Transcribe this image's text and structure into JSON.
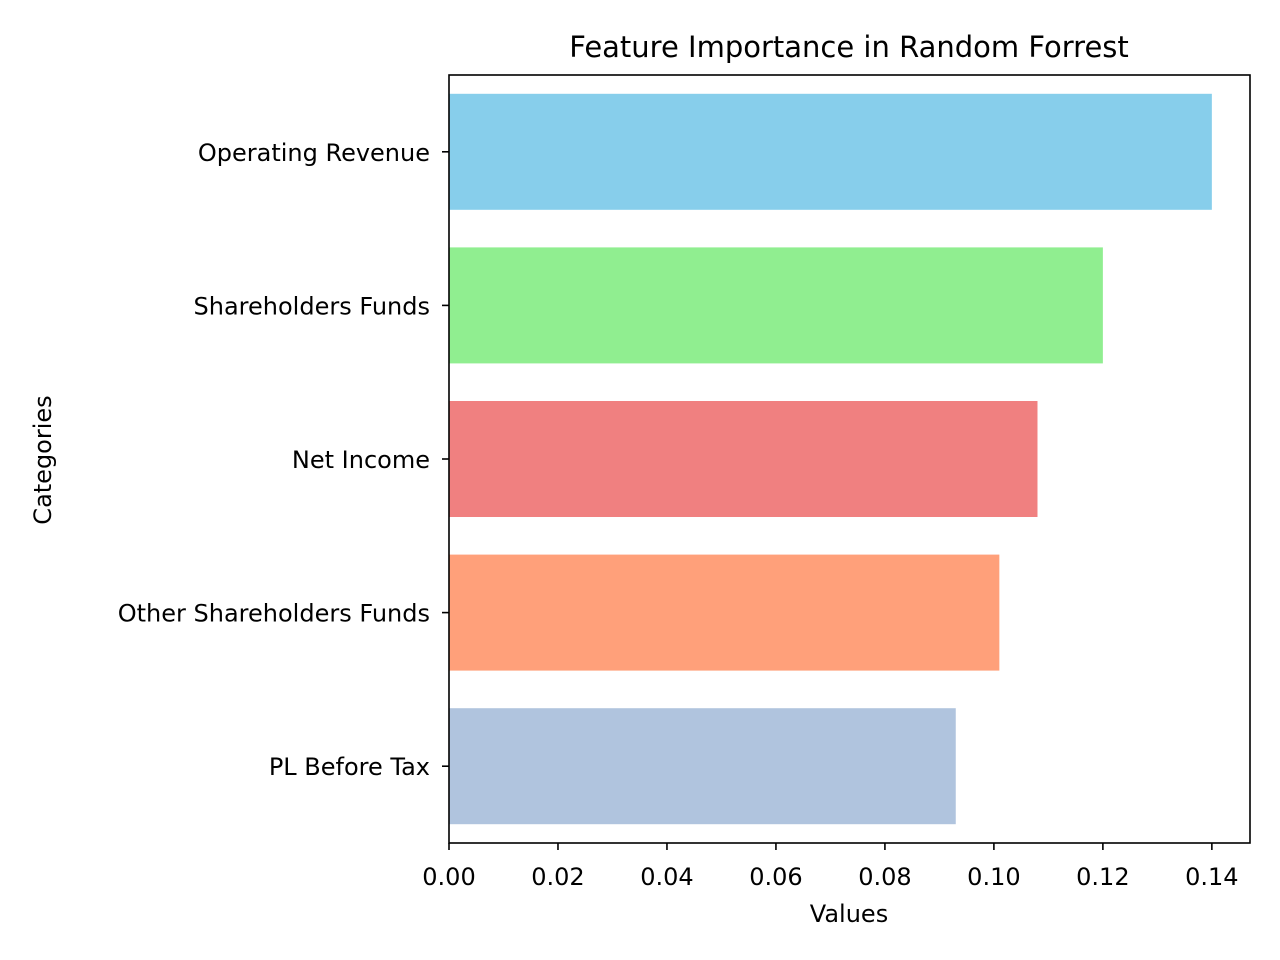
{
  "chart_data": {
    "type": "bar",
    "orientation": "horizontal",
    "title": "Feature Importance in Random Forrest",
    "xlabel": "Values",
    "ylabel": "Categories",
    "categories": [
      "Operating Revenue",
      "Shareholders Funds",
      "Net Income",
      "Other Shareholders Funds",
      "PL Before Tax"
    ],
    "values": [
      0.14,
      0.12,
      0.108,
      0.101,
      0.093
    ],
    "colors": [
      "#87ceeb",
      "#90ee90",
      "#f08080",
      "#ffa07a",
      "#b0c4de"
    ],
    "xlim": [
      0,
      0.147
    ],
    "xticks": [
      "0.00",
      "0.02",
      "0.04",
      "0.06",
      "0.08",
      "0.10",
      "0.12",
      "0.14"
    ],
    "grid": false,
    "legend": "none"
  }
}
